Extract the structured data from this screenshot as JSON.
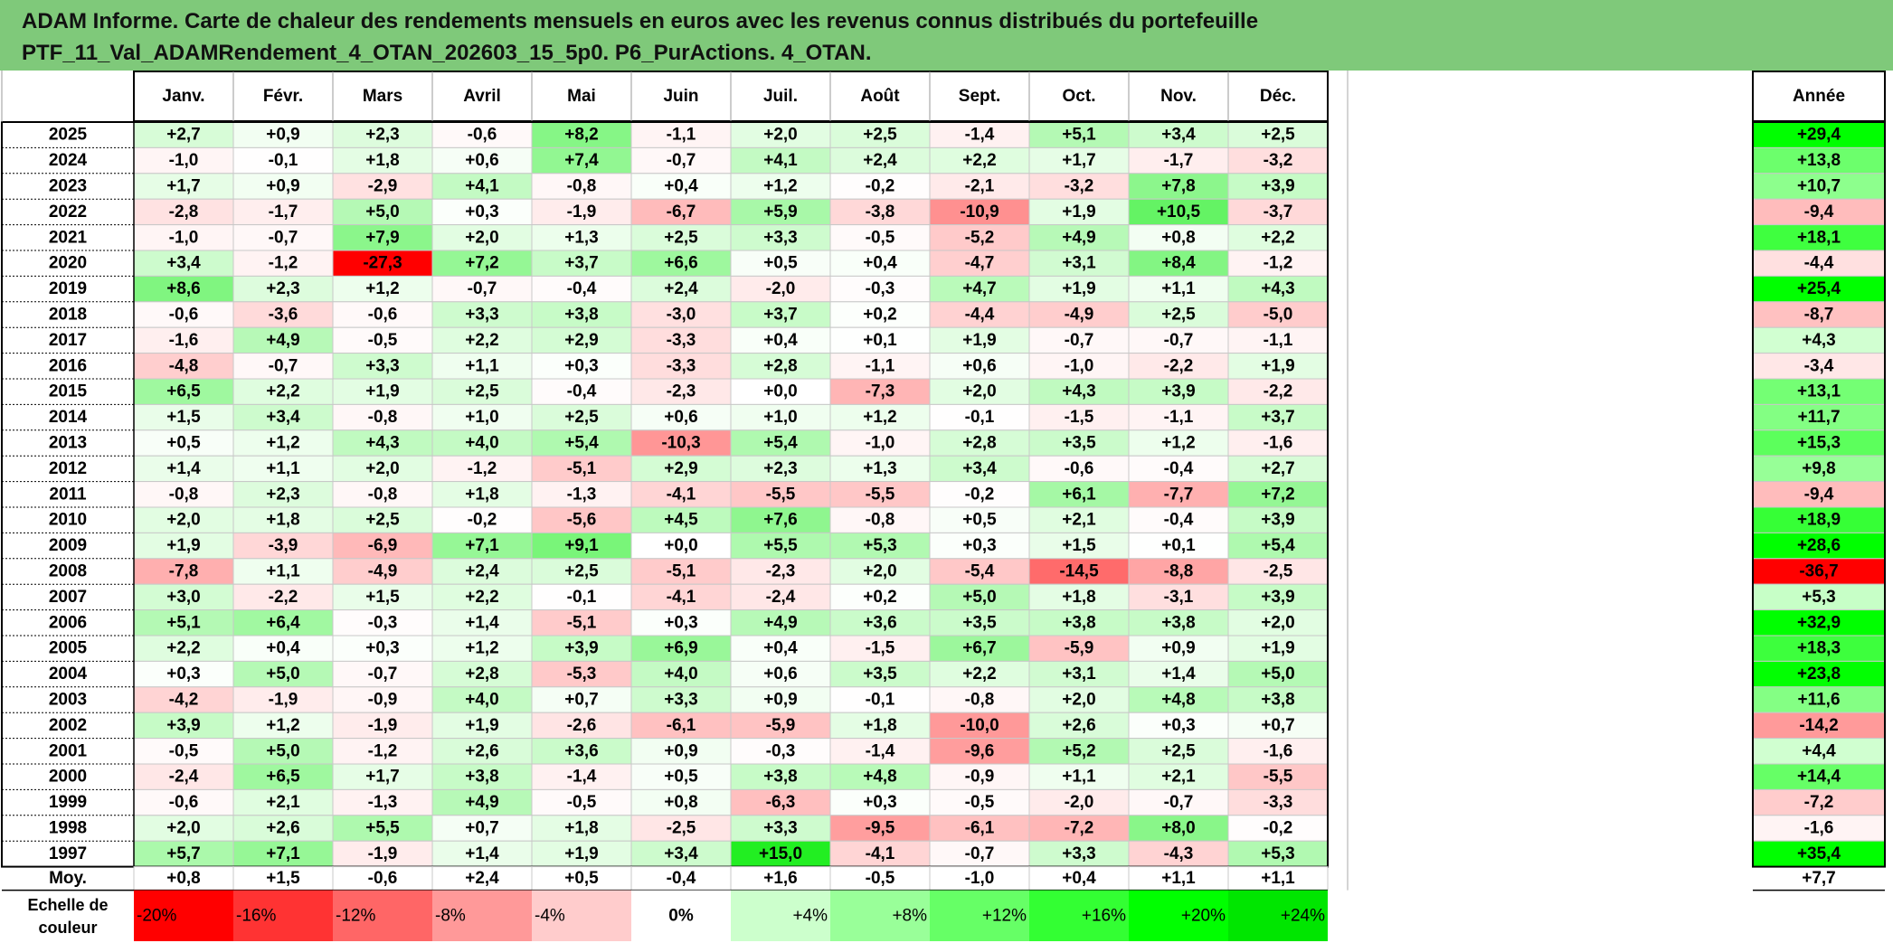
{
  "report": {
    "title_line1": "ADAM Informe. Carte de chaleur des rendements mensuels en euros avec les revenus connus distribués du portefeuille",
    "title_line2": "PTF_11_Val_ADAMRendement_4_OTAN_202603_15_5p0. P6_PurActions. 4_OTAN."
  },
  "chart_data": {
    "type": "heatmap",
    "columns": [
      "Janv.",
      "Févr.",
      "Mars",
      "Avril",
      "Mai",
      "Juin",
      "Juil.",
      "Août",
      "Sept.",
      "Oct.",
      "Nov.",
      "Déc."
    ],
    "annual_label": "Année",
    "rows": [
      {
        "year": "2025",
        "values": [
          "+2,7",
          "+0,9",
          "+2,3",
          "-0,6",
          "+8,2",
          "-1,1",
          "+2,0",
          "+2,5",
          "-1,4",
          "+5,1",
          "+3,4",
          "+2,5"
        ],
        "annual": "+29,4"
      },
      {
        "year": "2024",
        "values": [
          "-1,0",
          "-0,1",
          "+1,8",
          "+0,6",
          "+7,4",
          "-0,7",
          "+4,1",
          "+2,4",
          "+2,2",
          "+1,7",
          "-1,7",
          "-3,2"
        ],
        "annual": "+13,8"
      },
      {
        "year": "2023",
        "values": [
          "+1,7",
          "+0,9",
          "-2,9",
          "+4,1",
          "-0,8",
          "+0,4",
          "+1,2",
          "-0,2",
          "-2,1",
          "-3,2",
          "+7,8",
          "+3,9"
        ],
        "annual": "+10,7"
      },
      {
        "year": "2022",
        "values": [
          "-2,8",
          "-1,7",
          "+5,0",
          "+0,3",
          "-1,9",
          "-6,7",
          "+5,9",
          "-3,8",
          "-10,9",
          "+1,9",
          "+10,5",
          "-3,7"
        ],
        "annual": "-9,4"
      },
      {
        "year": "2021",
        "values": [
          "-1,0",
          "-0,7",
          "+7,9",
          "+2,0",
          "+1,3",
          "+2,5",
          "+3,3",
          "-0,5",
          "-5,2",
          "+4,9",
          "+0,8",
          "+2,2"
        ],
        "annual": "+18,1"
      },
      {
        "year": "2020",
        "values": [
          "+3,4",
          "-1,2",
          "-27,3",
          "+7,2",
          "+3,7",
          "+6,6",
          "+0,5",
          "+0,4",
          "-4,7",
          "+3,1",
          "+8,4",
          "-1,2"
        ],
        "annual": "-4,4"
      },
      {
        "year": "2019",
        "values": [
          "+8,6",
          "+2,3",
          "+1,2",
          "-0,7",
          "-0,4",
          "+2,4",
          "-2,0",
          "-0,3",
          "+4,7",
          "+1,9",
          "+1,1",
          "+4,3"
        ],
        "annual": "+25,4"
      },
      {
        "year": "2018",
        "values": [
          "-0,6",
          "-3,6",
          "-0,6",
          "+3,3",
          "+3,8",
          "-3,0",
          "+3,7",
          "+0,2",
          "-4,4",
          "-4,9",
          "+2,5",
          "-5,0"
        ],
        "annual": "-8,7"
      },
      {
        "year": "2017",
        "values": [
          "-1,6",
          "+4,9",
          "-0,5",
          "+2,2",
          "+2,9",
          "-3,3",
          "+0,4",
          "+0,1",
          "+1,9",
          "-0,7",
          "-0,7",
          "-1,1"
        ],
        "annual": "+4,3"
      },
      {
        "year": "2016",
        "values": [
          "-4,8",
          "-0,7",
          "+3,3",
          "+1,1",
          "+0,3",
          "-3,3",
          "+2,8",
          "-1,1",
          "+0,6",
          "-1,0",
          "-2,2",
          "+1,9"
        ],
        "annual": "-3,4"
      },
      {
        "year": "2015",
        "values": [
          "+6,5",
          "+2,2",
          "+1,9",
          "+2,5",
          "-0,4",
          "-2,3",
          "+0,0",
          "-7,3",
          "+2,0",
          "+4,3",
          "+3,9",
          "-2,2"
        ],
        "annual": "+13,1"
      },
      {
        "year": "2014",
        "values": [
          "+1,5",
          "+3,4",
          "-0,8",
          "+1,0",
          "+2,5",
          "+0,6",
          "+1,0",
          "+1,2",
          "-0,1",
          "-1,5",
          "-1,1",
          "+3,7"
        ],
        "annual": "+11,7"
      },
      {
        "year": "2013",
        "values": [
          "+0,5",
          "+1,2",
          "+4,3",
          "+4,0",
          "+5,4",
          "-10,3",
          "+5,4",
          "-1,0",
          "+2,8",
          "+3,5",
          "+1,2",
          "-1,6"
        ],
        "annual": "+15,3"
      },
      {
        "year": "2012",
        "values": [
          "+1,4",
          "+1,1",
          "+2,0",
          "-1,2",
          "-5,1",
          "+2,9",
          "+2,3",
          "+1,3",
          "+3,4",
          "-0,6",
          "-0,4",
          "+2,7"
        ],
        "annual": "+9,8"
      },
      {
        "year": "2011",
        "values": [
          "-0,8",
          "+2,3",
          "-0,8",
          "+1,8",
          "-1,3",
          "-4,1",
          "-5,5",
          "-5,5",
          "-0,2",
          "+6,1",
          "-7,7",
          "+7,2"
        ],
        "annual": "-9,4"
      },
      {
        "year": "2010",
        "values": [
          "+2,0",
          "+1,8",
          "+2,5",
          "-0,2",
          "-5,6",
          "+4,5",
          "+7,6",
          "-0,8",
          "+0,5",
          "+2,1",
          "-0,4",
          "+3,9"
        ],
        "annual": "+18,9"
      },
      {
        "year": "2009",
        "values": [
          "+1,9",
          "-3,9",
          "-6,9",
          "+7,1",
          "+9,1",
          "+0,0",
          "+5,5",
          "+5,3",
          "+0,3",
          "+1,5",
          "+0,1",
          "+5,4"
        ],
        "annual": "+28,6"
      },
      {
        "year": "2008",
        "values": [
          "-7,8",
          "+1,1",
          "-4,9",
          "+2,4",
          "+2,5",
          "-5,1",
          "-2,3",
          "+2,0",
          "-5,4",
          "-14,5",
          "-8,8",
          "-2,5"
        ],
        "annual": "-36,7"
      },
      {
        "year": "2007",
        "values": [
          "+3,0",
          "-2,2",
          "+1,5",
          "+2,2",
          "-0,1",
          "-4,1",
          "-2,4",
          "+0,2",
          "+5,0",
          "+1,8",
          "-3,1",
          "+3,9"
        ],
        "annual": "+5,3"
      },
      {
        "year": "2006",
        "values": [
          "+5,1",
          "+6,4",
          "-0,3",
          "+1,4",
          "-5,1",
          "+0,3",
          "+4,9",
          "+3,6",
          "+3,5",
          "+3,8",
          "+3,8",
          "+2,0"
        ],
        "annual": "+32,9"
      },
      {
        "year": "2005",
        "values": [
          "+2,2",
          "+0,4",
          "+0,3",
          "+1,2",
          "+3,9",
          "+6,9",
          "+0,4",
          "-1,5",
          "+6,7",
          "-5,9",
          "+0,9",
          "+1,9"
        ],
        "annual": "+18,3"
      },
      {
        "year": "2004",
        "values": [
          "+0,3",
          "+5,0",
          "-0,7",
          "+2,8",
          "-5,3",
          "+4,0",
          "+0,6",
          "+3,5",
          "+2,2",
          "+3,1",
          "+1,4",
          "+5,0"
        ],
        "annual": "+23,8"
      },
      {
        "year": "2003",
        "values": [
          "-4,2",
          "-1,9",
          "-0,9",
          "+4,0",
          "+0,7",
          "+3,3",
          "+0,9",
          "-0,1",
          "-0,8",
          "+2,0",
          "+4,8",
          "+3,8"
        ],
        "annual": "+11,6"
      },
      {
        "year": "2002",
        "values": [
          "+3,9",
          "+1,2",
          "-1,9",
          "+1,9",
          "-2,6",
          "-6,1",
          "-5,9",
          "+1,8",
          "-10,0",
          "+2,6",
          "+0,3",
          "+0,7"
        ],
        "annual": "-14,2"
      },
      {
        "year": "2001",
        "values": [
          "-0,5",
          "+5,0",
          "-1,2",
          "+2,6",
          "+3,6",
          "+0,9",
          "-0,3",
          "-1,4",
          "-9,6",
          "+5,2",
          "+2,5",
          "-1,6"
        ],
        "annual": "+4,4"
      },
      {
        "year": "2000",
        "values": [
          "-2,4",
          "+6,5",
          "+1,7",
          "+3,8",
          "-1,4",
          "+0,5",
          "+3,8",
          "+4,8",
          "-0,9",
          "+1,1",
          "+2,1",
          "-5,5"
        ],
        "annual": "+14,4"
      },
      {
        "year": "1999",
        "values": [
          "-0,6",
          "+2,1",
          "-1,3",
          "+4,9",
          "-0,5",
          "+0,8",
          "-6,3",
          "+0,3",
          "-0,5",
          "-2,0",
          "-0,7",
          "-3,3"
        ],
        "annual": "-7,2"
      },
      {
        "year": "1998",
        "values": [
          "+2,0",
          "+2,6",
          "+5,5",
          "+0,7",
          "+1,8",
          "-2,5",
          "+3,3",
          "-9,5",
          "-6,1",
          "-7,2",
          "+8,0",
          "-0,2"
        ],
        "annual": "-1,6"
      },
      {
        "year": "1997",
        "values": [
          "+5,7",
          "+7,1",
          "-1,9",
          "+1,4",
          "+1,9",
          "+3,4",
          "+15,0",
          "-4,1",
          "-0,7",
          "+3,3",
          "-4,3",
          "+5,3"
        ],
        "annual": "+35,4"
      }
    ],
    "average": {
      "label": "Moy.",
      "values": [
        "+0,8",
        "+1,5",
        "-0,6",
        "+2,4",
        "+0,5",
        "-0,4",
        "+1,6",
        "-0,5",
        "-1,0",
        "+0,4",
        "+1,1",
        "+1,1"
      ],
      "annual": "+7,7"
    },
    "scale": {
      "label_line1": "Echelle de",
      "label_line2": "couleur",
      "stops": [
        {
          "label": "-20%",
          "value": -20,
          "color": "#ff0000"
        },
        {
          "label": "-16%",
          "value": -16,
          "color": "#ff3333"
        },
        {
          "label": "-12%",
          "value": -12,
          "color": "#ff6666"
        },
        {
          "label": "-8%",
          "value": -8,
          "color": "#ff9999"
        },
        {
          "label": "-4%",
          "value": -4,
          "color": "#ffcccc"
        },
        {
          "label": "0%",
          "value": 0,
          "color": "#ffffff"
        },
        {
          "label": "+4%",
          "value": 4,
          "color": "#ccffcc"
        },
        {
          "label": "+8%",
          "value": 8,
          "color": "#99ff99"
        },
        {
          "label": "+12%",
          "value": 12,
          "color": "#66ff66"
        },
        {
          "label": "+16%",
          "value": 16,
          "color": "#33ff33"
        },
        {
          "label": "+20%",
          "value": 20,
          "color": "#00ff00"
        },
        {
          "label": "+24%",
          "value": 24,
          "color": "#00e600"
        }
      ]
    },
    "color_scale_monthly": {
      "neg_full": -25,
      "pos_full": 15,
      "neg_color": "#ff0000",
      "pos_color": "#22ee22"
    },
    "color_scale_annual": {
      "neg_full": -36,
      "pos_full": 24,
      "neg_color": "#ff0000",
      "pos_color": "#00ff00"
    }
  }
}
